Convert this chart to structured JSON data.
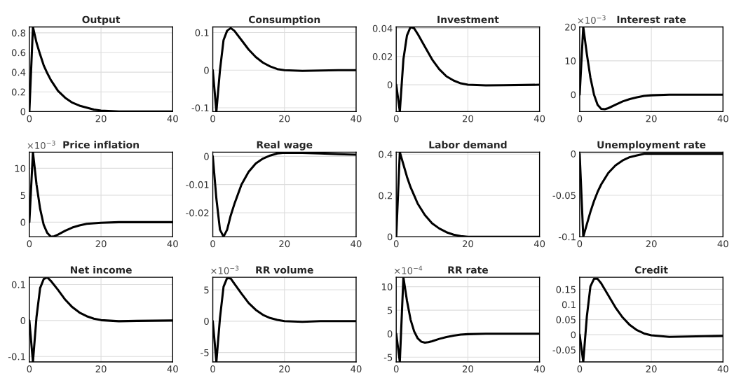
{
  "chart_data": [
    {
      "type": "line",
      "title": "Output",
      "xlim": [
        0,
        40
      ],
      "xticks": [
        0,
        20,
        40
      ],
      "ylim": [
        0,
        0.86
      ],
      "yticks": [
        0,
        0.2,
        0.4,
        0.6,
        0.8
      ],
      "grid": true,
      "line_style": "solid",
      "series": [
        {
          "color": "#000000",
          "x": [
            0,
            1,
            2,
            3,
            4,
            5,
            6,
            8,
            10,
            12,
            14,
            16,
            18,
            20,
            25,
            30,
            35,
            40
          ],
          "values": [
            0,
            0.86,
            0.7,
            0.58,
            0.47,
            0.39,
            0.32,
            0.21,
            0.14,
            0.09,
            0.06,
            0.04,
            0.02,
            0.01,
            0,
            0,
            0,
            0
          ]
        }
      ]
    },
    {
      "type": "line",
      "title": "Consumption",
      "xlim": [
        0,
        40
      ],
      "xticks": [
        0,
        20,
        40
      ],
      "ylim": [
        -0.11,
        0.115
      ],
      "yticks": [
        -0.1,
        0,
        0.1
      ],
      "grid": true,
      "line_style": "solid",
      "series": [
        {
          "color": "#000000",
          "x": [
            0,
            1,
            2,
            3,
            4,
            5,
            6,
            8,
            10,
            12,
            14,
            16,
            18,
            20,
            25,
            30,
            35,
            40
          ],
          "values": [
            0,
            -0.11,
            0,
            0.08,
            0.105,
            0.112,
            0.105,
            0.08,
            0.055,
            0.035,
            0.02,
            0.01,
            0.003,
            0,
            -0.002,
            -0.001,
            0,
            0
          ]
        }
      ]
    },
    {
      "type": "line",
      "title": "Investment",
      "xlim": [
        0,
        40
      ],
      "xticks": [
        0,
        20,
        40
      ],
      "ylim": [
        -0.019,
        0.041
      ],
      "yticks": [
        0,
        0.02,
        0.04
      ],
      "grid": true,
      "line_style": "solid",
      "series": [
        {
          "color": "#000000",
          "x": [
            0,
            1,
            2,
            3,
            4,
            5,
            6,
            8,
            10,
            12,
            14,
            16,
            18,
            20,
            25,
            30,
            40
          ],
          "values": [
            0,
            -0.019,
            0.018,
            0.035,
            0.041,
            0.04,
            0.036,
            0.027,
            0.018,
            0.011,
            0.006,
            0.003,
            0.001,
            0,
            -0.0005,
            -0.0003,
            0
          ]
        }
      ]
    },
    {
      "type": "line",
      "title": "Interest rate",
      "annotations": [
        "×10$^{−3}$"
      ],
      "xlim": [
        0,
        40
      ],
      "xticks": [
        0,
        20,
        40
      ],
      "ylim": [
        -5,
        20
      ],
      "yticks": [
        0,
        10,
        20
      ],
      "grid": true,
      "line_style": "solid",
      "series": [
        {
          "color": "#000000",
          "x": [
            0,
            1,
            2,
            3,
            4,
            5,
            6,
            7,
            8,
            10,
            12,
            14,
            16,
            18,
            20,
            25,
            30,
            40
          ],
          "values": [
            0,
            20,
            12,
            5,
            0,
            -3,
            -4.2,
            -4.3,
            -4,
            -3,
            -2,
            -1.3,
            -0.8,
            -0.4,
            -0.2,
            0,
            0,
            0
          ]
        }
      ]
    },
    {
      "type": "line",
      "title": "Price inflation",
      "annotations": [
        "×10$^{−3}$"
      ],
      "xlim": [
        0,
        40
      ],
      "xticks": [
        0,
        20,
        40
      ],
      "ylim": [
        -2.7,
        13
      ],
      "yticks": [
        0,
        5,
        10
      ],
      "grid": true,
      "line_style": "solid",
      "series": [
        {
          "color": "#000000",
          "x": [
            0,
            1,
            2,
            3,
            4,
            5,
            6,
            7,
            8,
            10,
            12,
            14,
            16,
            18,
            20,
            25,
            30,
            40
          ],
          "values": [
            0,
            13,
            7,
            2.5,
            -0.5,
            -2,
            -2.7,
            -2.6,
            -2.3,
            -1.6,
            -1.0,
            -0.6,
            -0.3,
            -0.2,
            -0.1,
            0,
            0,
            0
          ]
        }
      ]
    },
    {
      "type": "line",
      "title": "Real wage",
      "xlim": [
        0,
        40
      ],
      "xticks": [
        0,
        20,
        40
      ],
      "ylim": [
        -0.0285,
        0.0015
      ],
      "yticks": [
        -0.02,
        -0.01,
        0
      ],
      "grid": true,
      "line_style": "solid",
      "series": [
        {
          "color": "#000000",
          "x": [
            0,
            1,
            2,
            3,
            4,
            5,
            6,
            8,
            10,
            12,
            14,
            16,
            18,
            20,
            25,
            30,
            35,
            40
          ],
          "values": [
            0,
            -0.015,
            -0.026,
            -0.0285,
            -0.026,
            -0.021,
            -0.017,
            -0.01,
            -0.0055,
            -0.0025,
            -0.0008,
            0.0003,
            0.001,
            0.0013,
            0.0012,
            0.001,
            0.0008,
            0.0006
          ]
        }
      ]
    },
    {
      "type": "line",
      "title": "Labor demand",
      "xlim": [
        0,
        40
      ],
      "xticks": [
        0,
        20,
        40
      ],
      "ylim": [
        0,
        0.41
      ],
      "yticks": [
        0,
        0.2,
        0.4
      ],
      "grid": true,
      "line_style": "solid",
      "series": [
        {
          "color": "#000000",
          "x": [
            0,
            1,
            2,
            3,
            4,
            5,
            6,
            8,
            10,
            12,
            14,
            16,
            18,
            20,
            25,
            30,
            40
          ],
          "values": [
            0,
            0.41,
            0.35,
            0.29,
            0.24,
            0.2,
            0.16,
            0.105,
            0.065,
            0.04,
            0.022,
            0.01,
            0.003,
            0,
            0,
            0,
            0
          ]
        }
      ]
    },
    {
      "type": "line",
      "title": "Unemployment rate",
      "xlim": [
        0,
        40
      ],
      "xticks": [
        0,
        20,
        40
      ],
      "ylim": [
        -0.1,
        0.002
      ],
      "yticks": [
        -0.1,
        -0.05,
        0
      ],
      "grid": true,
      "line_style": "solid",
      "series": [
        {
          "color": "#000000",
          "x": [
            0,
            1,
            2,
            3,
            4,
            5,
            6,
            8,
            10,
            12,
            14,
            16,
            18,
            20,
            25,
            30,
            40
          ],
          "values": [
            0,
            -0.1,
            -0.085,
            -0.07,
            -0.057,
            -0.046,
            -0.037,
            -0.023,
            -0.014,
            -0.008,
            -0.004,
            -0.002,
            0,
            0,
            0,
            0,
            0
          ]
        }
      ]
    },
    {
      "type": "line",
      "title": "Net income",
      "xlim": [
        0,
        40
      ],
      "xticks": [
        0,
        20,
        40
      ],
      "ylim": [
        -0.115,
        0.12
      ],
      "yticks": [
        -0.1,
        0,
        0.1
      ],
      "grid": true,
      "line_style": "solid",
      "series": [
        {
          "color": "#000000",
          "x": [
            0,
            1,
            2,
            3,
            4,
            5,
            6,
            8,
            10,
            12,
            14,
            16,
            18,
            20,
            25,
            30,
            40
          ],
          "values": [
            0,
            -0.115,
            0.01,
            0.09,
            0.115,
            0.12,
            0.11,
            0.085,
            0.058,
            0.037,
            0.022,
            0.012,
            0.005,
            0.001,
            -0.002,
            -0.001,
            0
          ]
        }
      ]
    },
    {
      "type": "line",
      "title": "RR volume",
      "annotations": [
        "×10$^{−3}$"
      ],
      "xlim": [
        0,
        40
      ],
      "xticks": [
        0,
        20,
        40
      ],
      "ylim": [
        -6.5,
        7
      ],
      "yticks": [
        -5,
        0,
        5
      ],
      "grid": true,
      "line_style": "solid",
      "series": [
        {
          "color": "#000000",
          "x": [
            0,
            1,
            2,
            3,
            4,
            5,
            6,
            8,
            10,
            12,
            14,
            16,
            18,
            20,
            25,
            30,
            40
          ],
          "values": [
            0,
            -6.5,
            0.5,
            5.5,
            6.9,
            6.8,
            6.0,
            4.4,
            2.9,
            1.8,
            1.0,
            0.5,
            0.2,
            0,
            -0.1,
            0,
            0
          ]
        }
      ]
    },
    {
      "type": "line",
      "title": "RR rate",
      "annotations": [
        "×10$^{−4}$"
      ],
      "xlim": [
        0,
        40
      ],
      "xticks": [
        0,
        20,
        40
      ],
      "ylim": [
        -6,
        12
      ],
      "yticks": [
        -5,
        0,
        5,
        10
      ],
      "grid": true,
      "line_style": "solid",
      "series": [
        {
          "color": "#000000",
          "x": [
            0,
            1,
            2,
            3,
            4,
            5,
            6,
            7,
            8,
            9,
            10,
            12,
            14,
            16,
            18,
            20,
            25,
            40
          ],
          "values": [
            0,
            -6,
            12,
            7,
            3,
            0.5,
            -1,
            -1.7,
            -1.9,
            -1.8,
            -1.6,
            -1.1,
            -0.7,
            -0.4,
            -0.2,
            -0.1,
            0,
            0
          ]
        }
      ]
    },
    {
      "type": "line",
      "title": "Credit",
      "xlim": [
        0,
        40
      ],
      "xticks": [
        0,
        20,
        40
      ],
      "ylim": [
        -0.09,
        0.19
      ],
      "yticks": [
        -0.05,
        0,
        0.05,
        0.1,
        0.15
      ],
      "grid": true,
      "line_style": "solid",
      "series": [
        {
          "color": "#000000",
          "x": [
            0,
            1,
            2,
            3,
            4,
            5,
            6,
            8,
            10,
            12,
            14,
            16,
            18,
            20,
            25,
            30,
            35,
            40
          ],
          "values": [
            0,
            -0.09,
            0.06,
            0.16,
            0.185,
            0.185,
            0.17,
            0.13,
            0.09,
            0.057,
            0.032,
            0.015,
            0.004,
            -0.002,
            -0.007,
            -0.006,
            -0.005,
            -0.004
          ]
        }
      ]
    }
  ]
}
